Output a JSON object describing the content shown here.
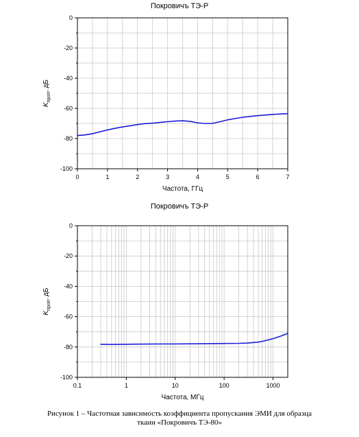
{
  "chart_data": [
    {
      "type": "line",
      "title": "Покровичъ ТЭ-Р",
      "xlabel": "Частота, ГГц",
      "ylabel_main": "K",
      "ylabel_sub": "проп",
      "ylabel_unit": ", дБ",
      "x_scale": "linear",
      "xlim": [
        0,
        7
      ],
      "ylim": [
        -100,
        0
      ],
      "x_ticks": [
        "0",
        "1",
        "2",
        "3",
        "4",
        "5",
        "6",
        "7"
      ],
      "y_ticks": [
        "0",
        "-20",
        "-40",
        "-60",
        "-80",
        "-100"
      ],
      "grid": true,
      "series": [
        {
          "color": "#1a1adb",
          "x": [
            0,
            0.25,
            0.5,
            0.75,
            1.0,
            1.25,
            1.5,
            1.75,
            2.0,
            2.25,
            2.5,
            2.75,
            3.0,
            3.25,
            3.5,
            3.75,
            4.0,
            4.25,
            4.5,
            4.75,
            5.0,
            5.25,
            5.5,
            5.75,
            6.0,
            6.25,
            6.5,
            6.75,
            7.0
          ],
          "y": [
            -78,
            -77.6,
            -76.8,
            -75.5,
            -74.3,
            -73.2,
            -72.3,
            -71.5,
            -70.7,
            -70.1,
            -69.8,
            -69.3,
            -68.8,
            -68.4,
            -68.2,
            -68.6,
            -69.6,
            -70.0,
            -69.9,
            -68.8,
            -67.6,
            -66.7,
            -65.9,
            -65.3,
            -64.8,
            -64.4,
            -64.0,
            -63.7,
            -63.5
          ]
        }
      ]
    },
    {
      "type": "line",
      "title": "Покровичъ ТЭ-Р",
      "xlabel": "Частота, МГц",
      "ylabel_main": "K",
      "ylabel_sub": "проп",
      "ylabel_unit": ", дБ",
      "x_scale": "log",
      "xlim": [
        0.1,
        2000
      ],
      "ylim": [
        -100,
        0
      ],
      "x_ticks": [
        "0.1",
        "1",
        "10",
        "100",
        "1000"
      ],
      "y_ticks": [
        "0",
        "-20",
        "-40",
        "-60",
        "-80",
        "-100"
      ],
      "grid": true,
      "series": [
        {
          "color": "#1a1adb",
          "x": [
            0.3,
            0.5,
            1,
            2,
            5,
            10,
            20,
            50,
            100,
            200,
            300,
            500,
            700,
            1000,
            1500,
            2000
          ],
          "y": [
            -78.2,
            -78.3,
            -78.2,
            -78.1,
            -78.0,
            -78.0,
            -77.9,
            -77.8,
            -77.7,
            -77.6,
            -77.4,
            -76.8,
            -75.8,
            -74.5,
            -72.6,
            -71.0
          ]
        }
      ]
    }
  ],
  "caption": {
    "line1": "Рисунок 1 – Частотная зависимость коэффициента пропускания ЭМИ для образца",
    "line2": "ткани «Покровичъ ТЭ-80»"
  }
}
